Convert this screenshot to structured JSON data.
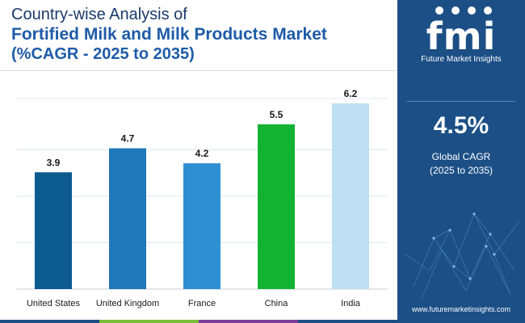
{
  "header": {
    "line1": "Country-wise Analysis of",
    "line2": "Fortified Milk and Milk Products Market",
    "line3": "(%CAGR - 2025 to 2035)"
  },
  "sidebar": {
    "logo_text": "fmi",
    "logo_subtitle": "Future Market Insights",
    "cagr_value": "4.5%",
    "cagr_label_line1": "Global CAGR",
    "cagr_label_line2": "(2025 to 2035)",
    "website": "www.futuremarketinsights.com",
    "background_color": "#1c4f86"
  },
  "chart_data": {
    "type": "bar",
    "categories": [
      "United States",
      "United Kingdom",
      "France",
      "China",
      "India"
    ],
    "values": [
      3.9,
      4.7,
      4.2,
      5.5,
      6.2
    ],
    "value_labels": [
      "3.9",
      "4.7",
      "4.2",
      "5.5",
      "6.2"
    ],
    "colors": [
      "#0d5a91",
      "#1f78b8",
      "#2f8fd3",
      "#14b233",
      "#bfe0f2"
    ],
    "ylim": [
      0,
      6.2
    ],
    "grid": true,
    "title": "",
    "xlabel": "",
    "ylabel": ""
  },
  "footer": {
    "stripe_colors": [
      "#1c4f86",
      "#7bbf3a",
      "#7a3e98",
      "#1c4f86"
    ]
  }
}
